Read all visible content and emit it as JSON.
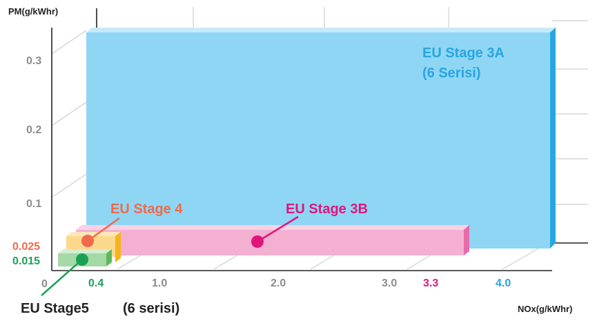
{
  "chart_data": {
    "type": "bar",
    "projection": "3d-step",
    "y_axis_label": "PM(g/kWhr)",
    "x_axis_label": "NOx(g/kWhr)",
    "y_ticks": [
      {
        "label": "0",
        "value": 0
      },
      {
        "label": "0.1",
        "value": 0.1
      },
      {
        "label": "0.2",
        "value": 0.2
      },
      {
        "label": "0.3",
        "value": 0.3
      }
    ],
    "x_ticks": [
      {
        "label": "0.4",
        "value": 0.4,
        "color": "#1aa155"
      },
      {
        "label": "1.0",
        "value": 1.0,
        "color": "#8c8c8c"
      },
      {
        "label": "2.0",
        "value": 2.0,
        "color": "#8c8c8c"
      },
      {
        "label": "3.0",
        "value": 3.0,
        "color": "#8c8c8c"
      },
      {
        "label": "3.3",
        "value": 3.3,
        "color": "#e2147c"
      },
      {
        "label": "4.0",
        "value": 4.0,
        "color": "#27a6e0"
      }
    ],
    "y_value_labels": [
      {
        "label": "0.025",
        "value": 0.025,
        "color": "#ef6a4a"
      },
      {
        "label": "0.015",
        "value": 0.015,
        "color": "#1aa155"
      }
    ],
    "series": [
      {
        "name": "EU Stage 3A",
        "name_line2": "(6 Serisi)",
        "nox": 4.0,
        "pm": 0.3,
        "color": "#8fd6f5",
        "label_color": "#27a6e0"
      },
      {
        "name": "EU Stage 3B",
        "nox": 3.3,
        "pm": 0.025,
        "color": "#f4b0d0",
        "label_color": "#e2147c"
      },
      {
        "name": "EU Stage 4",
        "nox": 0.4,
        "pm": 0.025,
        "color": "#fbd88c",
        "label_color": "#ef6a4a"
      },
      {
        "name": "EU Stage5",
        "name_line2": "(6 serisi)",
        "nox": 0.4,
        "pm": 0.015,
        "color": "#a5d9a5",
        "label_color": "#1aa155"
      }
    ]
  }
}
